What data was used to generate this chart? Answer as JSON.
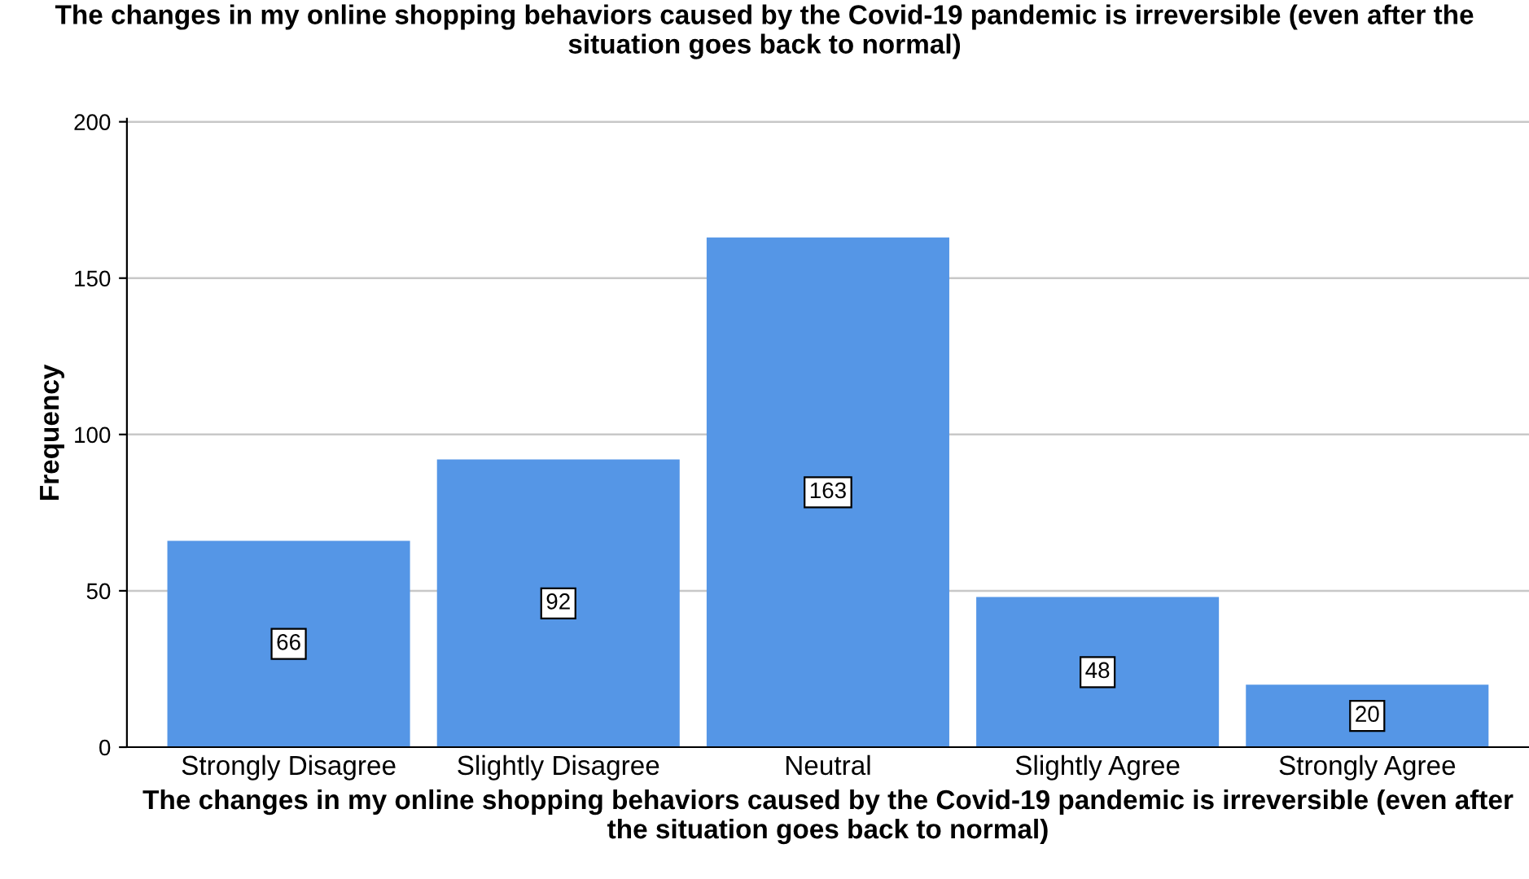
{
  "chart_data": {
    "type": "bar",
    "title": "The changes in my online shopping behaviors caused by the Covid-19 pandemic is irreversible (even after the situation goes back to normal)",
    "xlabel": "The changes in my online shopping behaviors caused by the Covid-19 pandemic is irreversible (even after the situation goes back to normal)",
    "ylabel": "Frequency",
    "categories": [
      "Strongly Disagree",
      "Slightly Disagree",
      "Neutral",
      "Slightly Agree",
      "Strongly Agree"
    ],
    "values": [
      66,
      92,
      163,
      48,
      20
    ],
    "color": "#5596e6",
    "ylim": [
      0,
      201
    ],
    "yticks": [
      0,
      50,
      100,
      150,
      200
    ],
    "grid": "y",
    "data_labels": true
  }
}
